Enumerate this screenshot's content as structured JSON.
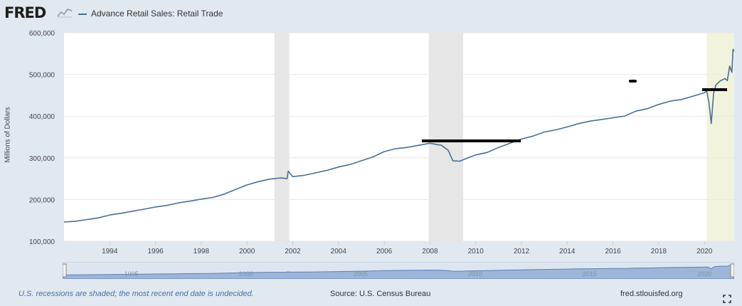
{
  "header": {
    "logo_text": "FRED",
    "logo_graph_icon": "line-chart-icon",
    "legend_label": "Advance Retail Sales: Retail Trade",
    "series_color": "#4a6f94"
  },
  "footer": {
    "recession_note": "U.S. recessions are shaded; the most recent end date is undecided.",
    "source": "Source: U.S. Census Bureau",
    "site": "fred.stlouisfed.org"
  },
  "navigator": {
    "tick_labels": [
      "1995",
      "2000",
      "2005",
      "2010",
      "2015",
      "2020"
    ]
  },
  "colors": {
    "background": "#e1e9f0",
    "recession_shade": "#e6e6e6",
    "recent_shade": "#f2f3dc",
    "navigator_fill": "#9fb5d8"
  },
  "chart_data": {
    "type": "line",
    "title": "",
    "xlabel": "",
    "ylabel": "Millions of Dollars",
    "xlim": [
      1992.0,
      2021.3
    ],
    "ylim": [
      100000,
      600000
    ],
    "yticks": [
      100000,
      200000,
      300000,
      400000,
      500000,
      600000
    ],
    "ytick_labels": [
      "100,000",
      "200,000",
      "300,000",
      "400,000",
      "500,000",
      "600,000"
    ],
    "xticks": [
      1994,
      1996,
      1998,
      2000,
      2002,
      2004,
      2006,
      2008,
      2010,
      2012,
      2014,
      2016,
      2018,
      2020
    ],
    "xtick_labels": [
      "1994",
      "1996",
      "1998",
      "2000",
      "2002",
      "2004",
      "2006",
      "2008",
      "2010",
      "2012",
      "2014",
      "2016",
      "2018",
      "2020"
    ],
    "grid": "horizontal",
    "recession_periods": [
      [
        2001.2,
        2001.85
      ],
      [
        2007.95,
        2009.45
      ]
    ],
    "open_recession_start": 2020.1,
    "series": [
      {
        "name": "Advance Retail Sales: Retail Trade",
        "x": [
          1992.0,
          1992.5,
          1993.0,
          1993.5,
          1994.0,
          1994.5,
          1995.0,
          1995.5,
          1996.0,
          1996.5,
          1997.0,
          1997.5,
          1998.0,
          1998.5,
          1999.0,
          1999.5,
          2000.0,
          2000.5,
          2001.0,
          2001.5,
          2001.75,
          2001.8,
          2002.0,
          2002.5,
          2003.0,
          2003.5,
          2004.0,
          2004.5,
          2005.0,
          2005.5,
          2006.0,
          2006.5,
          2007.0,
          2007.5,
          2008.0,
          2008.5,
          2008.8,
          2009.0,
          2009.3,
          2009.7,
          2010.0,
          2010.5,
          2011.0,
          2011.5,
          2012.0,
          2012.5,
          2013.0,
          2013.5,
          2014.0,
          2014.5,
          2015.0,
          2015.5,
          2016.0,
          2016.5,
          2017.0,
          2017.5,
          2018.0,
          2018.5,
          2019.0,
          2019.5,
          2020.0,
          2020.1,
          2020.2,
          2020.3,
          2020.4,
          2020.5,
          2020.7,
          2020.9,
          2021.0,
          2021.1,
          2021.2,
          2021.25,
          2021.3
        ],
        "values": [
          146000,
          148000,
          152000,
          156000,
          163000,
          167000,
          172000,
          177000,
          182000,
          186000,
          192000,
          196000,
          201000,
          205000,
          213000,
          224000,
          235000,
          243000,
          249000,
          252000,
          250000,
          268000,
          255000,
          258000,
          264000,
          270000,
          278000,
          284000,
          293000,
          302000,
          315000,
          322000,
          325000,
          330000,
          335000,
          330000,
          318000,
          293000,
          292000,
          301000,
          307000,
          313000,
          325000,
          335000,
          345000,
          352000,
          362000,
          367000,
          374000,
          382000,
          388000,
          392000,
          396000,
          400000,
          412000,
          418000,
          428000,
          436000,
          440000,
          448000,
          456000,
          460000,
          432000,
          382000,
          455000,
          475000,
          485000,
          490000,
          485000,
          520000,
          505000,
          560000,
          556000
        ]
      }
    ]
  }
}
